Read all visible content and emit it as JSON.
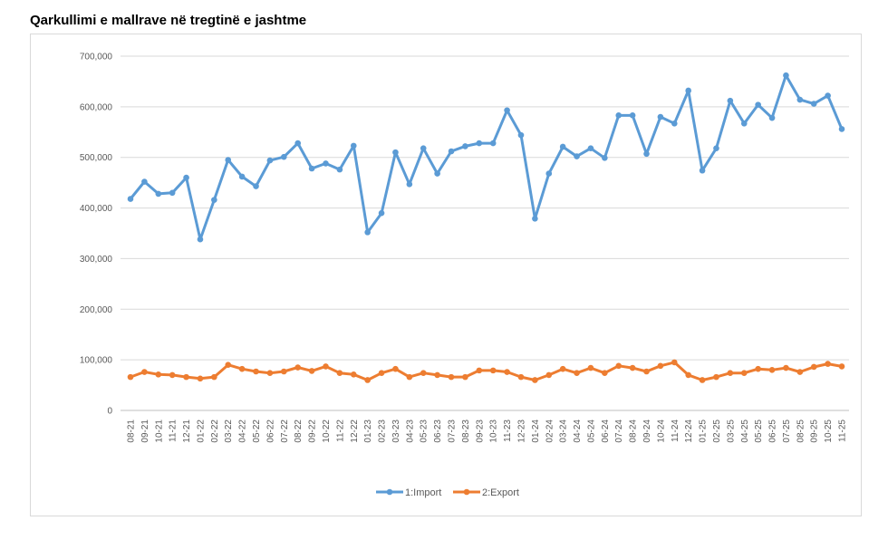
{
  "chart_data": {
    "type": "line",
    "title": "Qarkullimi e mallrave në tregtinë e jashtme",
    "categories": [
      "08-21",
      "09-21",
      "10-21",
      "11-21",
      "12-21",
      "01-22",
      "02-22",
      "03-22",
      "04-22",
      "05-22",
      "06-22",
      "07-22",
      "08-22",
      "09-22",
      "10-22",
      "11-22",
      "12-22",
      "01-23",
      "02-23",
      "03-23",
      "04-23",
      "05-23",
      "06-23",
      "07-23",
      "08-23",
      "09-23",
      "10-23",
      "11-23",
      "12-23",
      "01-24",
      "02-24",
      "03-24",
      "04-24",
      "05-24",
      "06-24",
      "07-24",
      "08-24",
      "09-24",
      "10-24",
      "11-24",
      "12-24",
      "01-25",
      "02-25",
      "03-25",
      "04-25",
      "05-25",
      "06-25",
      "07-25",
      "08-25",
      "09-25",
      "10-25",
      "11-25"
    ],
    "series": [
      {
        "name": "1:Import",
        "color": "#5b9bd5",
        "values": [
          418,
          452,
          428,
          430,
          460,
          338,
          416,
          495,
          462,
          443,
          494,
          501,
          528,
          478,
          488,
          476,
          523,
          352,
          390,
          510,
          447,
          518,
          468,
          512,
          522,
          528,
          528,
          593,
          544,
          379,
          468,
          521,
          502,
          518,
          499,
          583,
          583,
          507,
          580,
          567,
          632,
          474,
          518,
          612,
          567,
          604,
          578,
          662,
          614,
          606,
          622,
          556
        ]
      },
      {
        "name": "2:Export",
        "color": "#ed7d31",
        "values": [
          66,
          76,
          71,
          70,
          66,
          63,
          66,
          90,
          82,
          77,
          74,
          77,
          85,
          78,
          87,
          74,
          71,
          60,
          74,
          82,
          66,
          74,
          70,
          66,
          66,
          79,
          79,
          76,
          66,
          60,
          70,
          82,
          74,
          84,
          74,
          88,
          84,
          77,
          88,
          95,
          70,
          60,
          66,
          74,
          74,
          82,
          80,
          84,
          76,
          86,
          92,
          87
        ]
      }
    ],
    "yticks": [
      "0",
      "100,000",
      "200,000",
      "300,000",
      "400,000",
      "500,000",
      "600,000",
      "700,000"
    ],
    "ylim": [
      0,
      700
    ],
    "grid": true,
    "legend_position": "bottom"
  }
}
